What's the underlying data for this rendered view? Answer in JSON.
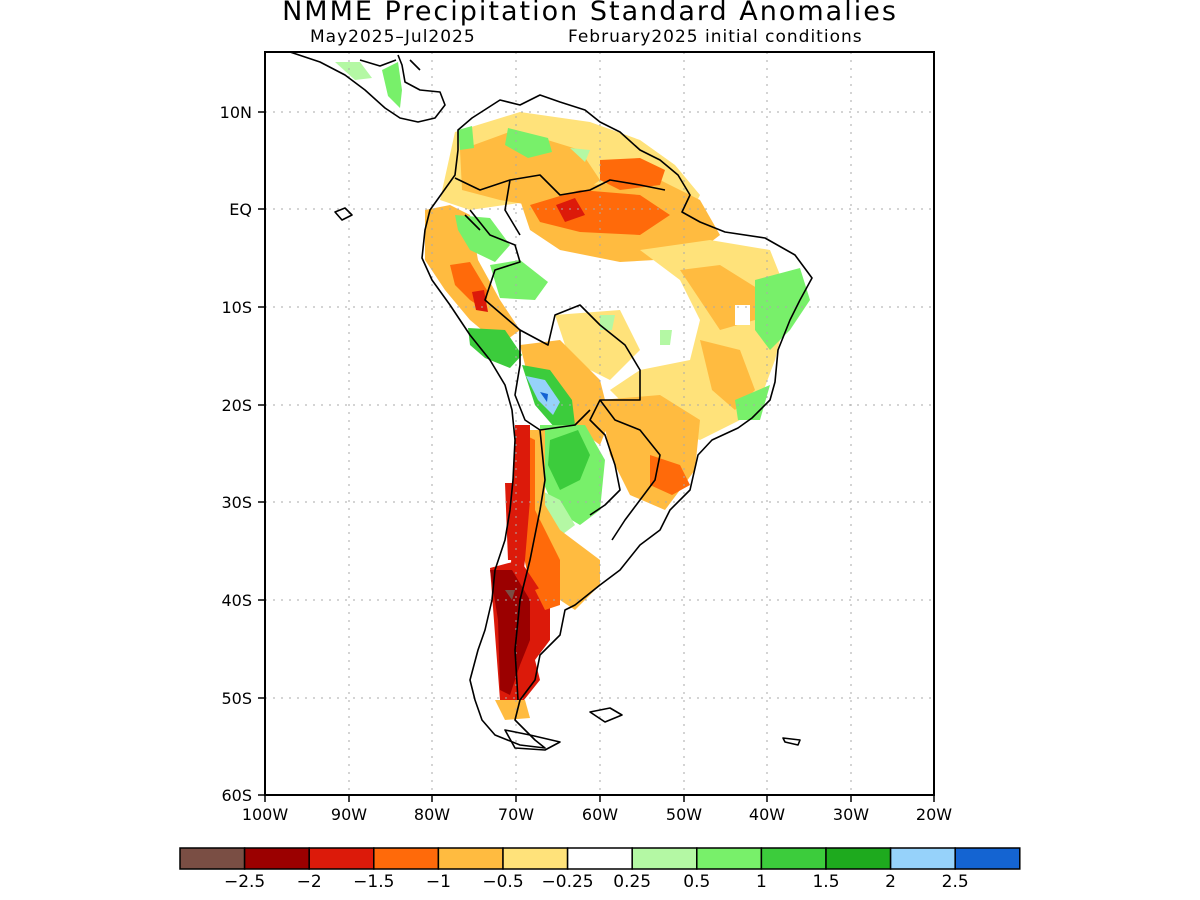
{
  "title": "NMME Precipitation Standard Anomalies",
  "subtitle_left": "May2025–Jul2025",
  "subtitle_right": "February2025 initial conditions",
  "map": {
    "lon_range": [
      -100,
      -20
    ],
    "lat_range": [
      -60,
      16
    ],
    "x_ticks": [
      "100W",
      "90W",
      "80W",
      "70W",
      "60W",
      "50W",
      "40W",
      "30W",
      "20W"
    ],
    "y_ticks": [
      "10N",
      "EQ",
      "10S",
      "20S",
      "30S",
      "40S",
      "50S",
      "60S"
    ],
    "grid": "dotted"
  },
  "colorbar": {
    "colors": [
      "#7a4e44",
      "#9b0000",
      "#dc1a0a",
      "#ff6a0a",
      "#ffbb40",
      "#ffe27a",
      "#ffffff",
      "#b4f8a4",
      "#78f06a",
      "#3ccc3c",
      "#1eaa1e",
      "#96d2fa",
      "#1464d2"
    ],
    "labels": [
      "−2.5",
      "−2",
      "−1.5",
      "−1",
      "−0.5",
      "−0.25",
      "0.25",
      "0.5",
      "1",
      "1.5",
      "2",
      "2.5"
    ]
  }
}
